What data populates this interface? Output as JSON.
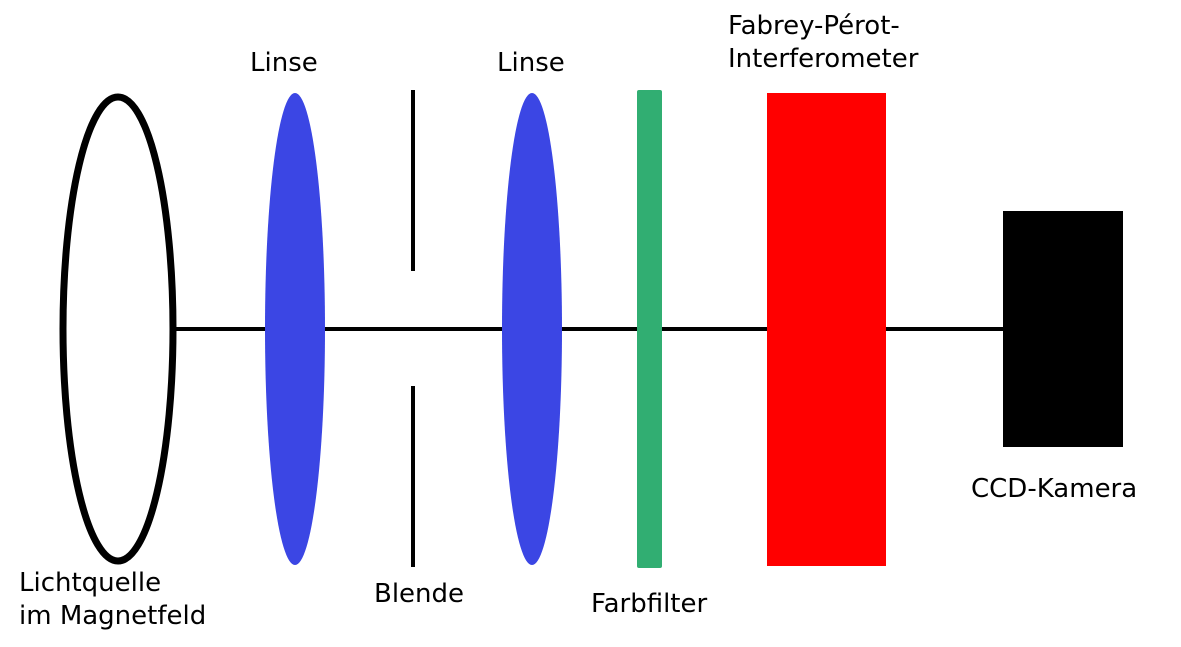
{
  "colors": {
    "optical_axis": "#000000",
    "light_source": "#000000",
    "lens": "#3b46e4",
    "aperture": "#000000",
    "color_filter": "#31ae72",
    "interferometer": "#ff0000",
    "camera": "#000000"
  },
  "labels": {
    "light_source_line1": "Lichtquelle",
    "light_source_line2": "im Magnetfeld",
    "lens1": "Linse",
    "aperture": "Blende",
    "lens2": "Linse",
    "color_filter": "Farbfilter",
    "interferometer_line1": "Fabrey-Pérot-",
    "interferometer_line2": "Interferometer",
    "camera": "CCD-Kamera"
  }
}
